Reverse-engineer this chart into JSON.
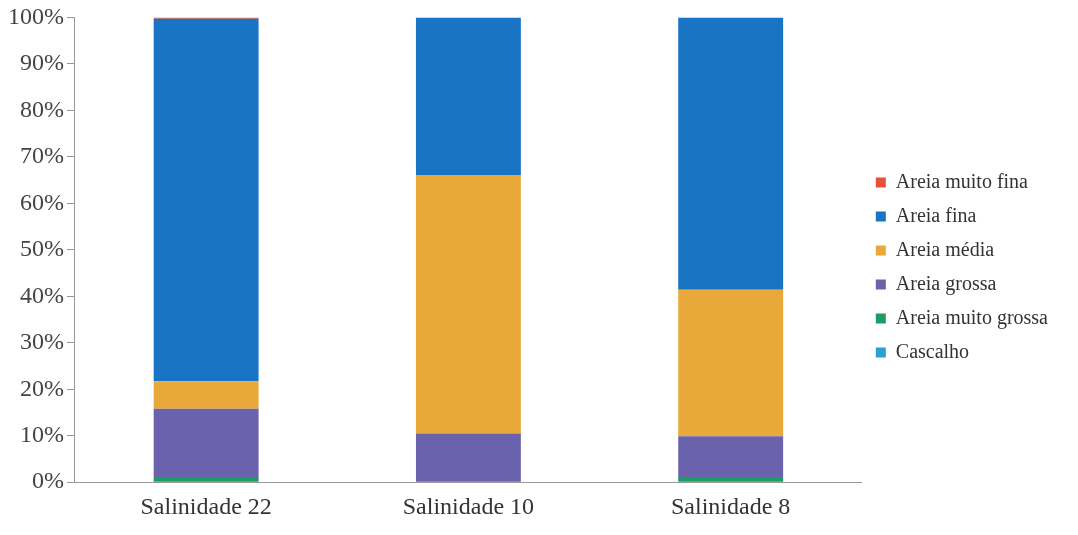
{
  "chart_data": {
    "type": "bar",
    "stacked": true,
    "categories": [
      "Salinidade 22",
      "Salinidade 10",
      "Salinidade 8"
    ],
    "series": [
      {
        "name": "Cascalho",
        "color": "#2aa0d6",
        "values": [
          0,
          0,
          0
        ]
      },
      {
        "name": "Areia muito grossa",
        "color": "#1a9e63",
        "values": [
          1.1,
          0,
          1.1
        ]
      },
      {
        "name": "Areia grossa",
        "color": "#6b62ad",
        "values": [
          14.7,
          10.5,
          8.8
        ]
      },
      {
        "name": "Areia média",
        "color": "#e9a93a",
        "values": [
          5.9,
          55.6,
          31.5
        ]
      },
      {
        "name": "Areia fina",
        "color": "#1a74c4",
        "values": [
          78.0,
          33.9,
          58.6
        ]
      },
      {
        "name": "Areia muito fina",
        "color": "#e8503a",
        "values": [
          0.3,
          0,
          0
        ]
      }
    ],
    "ylim": [
      0,
      100
    ],
    "yticks": [
      {
        "value": 0,
        "label": "0%"
      },
      {
        "value": 10,
        "label": "10%"
      },
      {
        "value": 20,
        "label": "20%"
      },
      {
        "value": 30,
        "label": "30%"
      },
      {
        "value": 40,
        "label": "40%"
      },
      {
        "value": 50,
        "label": "50%"
      },
      {
        "value": 60,
        "label": "60%"
      },
      {
        "value": 70,
        "label": "70%"
      },
      {
        "value": 80,
        "label": "80%"
      },
      {
        "value": 90,
        "label": "90%"
      },
      {
        "value": 100,
        "label": "100%"
      }
    ],
    "grid": false,
    "legend": "right"
  }
}
